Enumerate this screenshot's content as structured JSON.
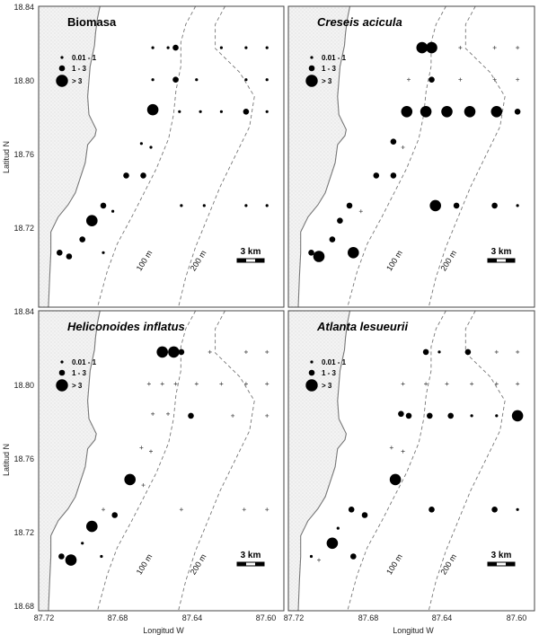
{
  "axes": {
    "xlabel": "Longitud W",
    "ylabel": "Latitud N",
    "xticks": [
      "87.72",
      "87.68",
      "87.64",
      "87.60"
    ],
    "yticks_top": [
      "18.84",
      "18.80",
      "18.76",
      "18.72"
    ],
    "yticks_bottom": [
      "18.84",
      "18.80",
      "18.76",
      "18.72",
      "18.68"
    ]
  },
  "legend": {
    "small": "0.01 - 1",
    "medium": "1 - 3",
    "large": "> 3"
  },
  "scalebar": "3 km",
  "isobaths": {
    "a": "100 m",
    "b": "200 m"
  },
  "colors": {
    "land": "#f2f2f2",
    "coast": "#777777",
    "dot": "#000000",
    "frame": "#444444"
  },
  "chart_data": [
    {
      "type": "scatter",
      "title": "Biomasa",
      "italic": false,
      "xlabel": "Longitud W",
      "ylabel": "Latitud N",
      "xlim": [
        87.72,
        87.595
      ],
      "ylim": [
        18.68,
        18.84
      ],
      "points": [
        [
          87.648,
          18.818,
          2
        ],
        [
          87.66,
          18.818,
          1
        ],
        [
          87.652,
          18.818,
          1
        ],
        [
          87.624,
          18.818,
          1
        ],
        [
          87.611,
          18.818,
          1
        ],
        [
          87.6,
          18.818,
          1
        ],
        [
          87.648,
          18.801,
          2
        ],
        [
          87.66,
          18.801,
          1
        ],
        [
          87.637,
          18.801,
          1
        ],
        [
          87.611,
          18.801,
          1
        ],
        [
          87.6,
          18.801,
          1
        ],
        [
          87.66,
          18.785,
          3
        ],
        [
          87.646,
          18.784,
          1
        ],
        [
          87.635,
          18.784,
          1
        ],
        [
          87.624,
          18.784,
          1
        ],
        [
          87.611,
          18.784,
          2
        ],
        [
          87.6,
          18.784,
          1
        ],
        [
          87.666,
          18.767,
          1
        ],
        [
          87.661,
          18.765,
          1
        ],
        [
          87.674,
          18.75,
          2
        ],
        [
          87.665,
          18.75,
          2
        ],
        [
          87.686,
          18.734,
          2
        ],
        [
          87.681,
          18.731,
          1
        ],
        [
          87.645,
          18.734,
          1
        ],
        [
          87.633,
          18.734,
          1
        ],
        [
          87.611,
          18.734,
          1
        ],
        [
          87.6,
          18.734,
          1
        ],
        [
          87.692,
          18.726,
          3
        ],
        [
          87.697,
          18.716,
          2
        ],
        [
          87.709,
          18.709,
          2
        ],
        [
          87.704,
          18.707,
          2
        ],
        [
          87.686,
          18.709,
          1
        ]
      ]
    },
    {
      "type": "scatter",
      "title": "Creseis acicula",
      "italic": true,
      "xlabel": "Longitud W",
      "ylabel": "Latitud N",
      "xlim": [
        87.72,
        87.595
      ],
      "ylim": [
        18.68,
        18.84
      ],
      "points": [
        [
          87.65,
          18.818,
          3
        ],
        [
          87.645,
          18.818,
          3
        ],
        [
          87.63,
          18.818,
          0
        ],
        [
          87.612,
          18.818,
          0
        ],
        [
          87.6,
          18.818,
          0
        ],
        [
          87.657,
          18.801,
          0
        ],
        [
          87.645,
          18.801,
          2
        ],
        [
          87.63,
          18.801,
          0
        ],
        [
          87.612,
          18.801,
          0
        ],
        [
          87.6,
          18.801,
          0
        ],
        [
          87.658,
          18.784,
          3
        ],
        [
          87.648,
          18.784,
          3
        ],
        [
          87.637,
          18.784,
          3
        ],
        [
          87.625,
          18.784,
          3
        ],
        [
          87.611,
          18.784,
          3
        ],
        [
          87.6,
          18.784,
          2
        ],
        [
          87.665,
          18.768,
          2
        ],
        [
          87.66,
          18.765,
          0
        ],
        [
          87.674,
          18.75,
          2
        ],
        [
          87.665,
          18.75,
          2
        ],
        [
          87.688,
          18.734,
          2
        ],
        [
          87.682,
          18.731,
          0
        ],
        [
          87.643,
          18.734,
          3
        ],
        [
          87.632,
          18.734,
          2
        ],
        [
          87.612,
          18.734,
          2
        ],
        [
          87.6,
          18.734,
          1
        ],
        [
          87.693,
          18.726,
          2
        ],
        [
          87.697,
          18.716,
          2
        ],
        [
          87.708,
          18.709,
          2
        ],
        [
          87.704,
          18.707,
          3
        ],
        [
          87.686,
          18.709,
          3
        ]
      ]
    },
    {
      "type": "scatter",
      "title": "Heliconoides inflatus",
      "italic": true,
      "xlabel": "Longitud W",
      "ylabel": "Latitud N",
      "xlim": [
        87.72,
        87.595
      ],
      "ylim": [
        18.68,
        18.84
      ],
      "points": [
        [
          87.655,
          18.818,
          3
        ],
        [
          87.649,
          18.818,
          3
        ],
        [
          87.645,
          18.818,
          2
        ],
        [
          87.63,
          18.818,
          0
        ],
        [
          87.611,
          18.818,
          0
        ],
        [
          87.6,
          18.818,
          0
        ],
        [
          87.662,
          18.801,
          0
        ],
        [
          87.655,
          18.801,
          0
        ],
        [
          87.648,
          18.801,
          0
        ],
        [
          87.637,
          18.801,
          0
        ],
        [
          87.624,
          18.801,
          0
        ],
        [
          87.611,
          18.801,
          0
        ],
        [
          87.6,
          18.801,
          0
        ],
        [
          87.66,
          18.785,
          0
        ],
        [
          87.652,
          18.785,
          0
        ],
        [
          87.64,
          18.784,
          2
        ],
        [
          87.618,
          18.784,
          0
        ],
        [
          87.6,
          18.784,
          0
        ],
        [
          87.666,
          18.767,
          0
        ],
        [
          87.661,
          18.765,
          0
        ],
        [
          87.672,
          18.75,
          3
        ],
        [
          87.665,
          18.747,
          0
        ],
        [
          87.686,
          18.734,
          0
        ],
        [
          87.68,
          18.731,
          2
        ],
        [
          87.645,
          18.734,
          0
        ],
        [
          87.612,
          18.734,
          0
        ],
        [
          87.6,
          18.734,
          0
        ],
        [
          87.692,
          18.725,
          3
        ],
        [
          87.697,
          18.716,
          1
        ],
        [
          87.708,
          18.709,
          2
        ],
        [
          87.703,
          18.707,
          3
        ],
        [
          87.687,
          18.709,
          1
        ]
      ]
    },
    {
      "type": "scatter",
      "title": "Atlanta lesueurii",
      "italic": true,
      "xlabel": "Longitud W",
      "ylabel": "Latitud N",
      "xlim": [
        87.72,
        87.595
      ],
      "ylim": [
        18.68,
        18.84
      ],
      "points": [
        [
          87.648,
          18.818,
          2
        ],
        [
          87.641,
          18.818,
          1
        ],
        [
          87.626,
          18.818,
          2
        ],
        [
          87.611,
          18.818,
          0
        ],
        [
          87.6,
          18.818,
          0
        ],
        [
          87.66,
          18.801,
          0
        ],
        [
          87.648,
          18.801,
          0
        ],
        [
          87.637,
          18.801,
          0
        ],
        [
          87.624,
          18.801,
          0
        ],
        [
          87.611,
          18.801,
          0
        ],
        [
          87.6,
          18.801,
          0
        ],
        [
          87.661,
          18.785,
          2
        ],
        [
          87.657,
          18.784,
          2
        ],
        [
          87.646,
          18.784,
          2
        ],
        [
          87.635,
          18.784,
          2
        ],
        [
          87.624,
          18.784,
          1
        ],
        [
          87.611,
          18.784,
          1
        ],
        [
          87.6,
          18.784,
          3
        ],
        [
          87.666,
          18.767,
          0
        ],
        [
          87.66,
          18.765,
          0
        ],
        [
          87.664,
          18.75,
          3
        ],
        [
          87.687,
          18.734,
          2
        ],
        [
          87.68,
          18.731,
          2
        ],
        [
          87.645,
          18.734,
          2
        ],
        [
          87.612,
          18.734,
          2
        ],
        [
          87.6,
          18.734,
          1
        ],
        [
          87.694,
          18.724,
          1
        ],
        [
          87.697,
          18.716,
          3
        ],
        [
          87.708,
          18.709,
          1
        ],
        [
          87.704,
          18.707,
          0
        ],
        [
          87.686,
          18.709,
          2
        ]
      ]
    }
  ]
}
